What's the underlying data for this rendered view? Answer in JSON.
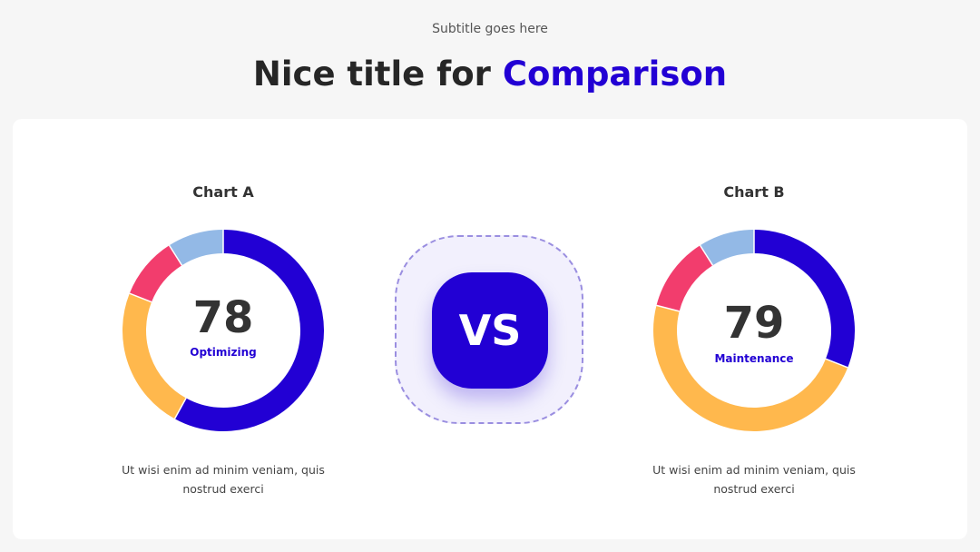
{
  "header": {
    "subtitle": "Subtitle goes here",
    "title": "Nice title for",
    "title_highlight": "Comparison"
  },
  "vs_label": "VS",
  "chart_data": [
    {
      "type": "donut",
      "title": "Chart A",
      "center_value": "78",
      "center_label": "Optimizing",
      "values": [
        58,
        23,
        10,
        9
      ],
      "colors": [
        "#2200d4",
        "#ffb84d",
        "#f23d6d",
        "#93b9e6"
      ],
      "description": "Ut wisi enim ad minim veniam, quis nostrud exerci"
    },
    {
      "type": "donut",
      "title": "Chart B",
      "center_value": "79",
      "center_label": "Maintenance",
      "values": [
        31,
        48,
        12,
        9
      ],
      "colors": [
        "#2200d4",
        "#ffb84d",
        "#f23d6d",
        "#93b9e6"
      ],
      "description": "Ut wisi enim ad minim veniam, quis nostrud exerci"
    }
  ]
}
